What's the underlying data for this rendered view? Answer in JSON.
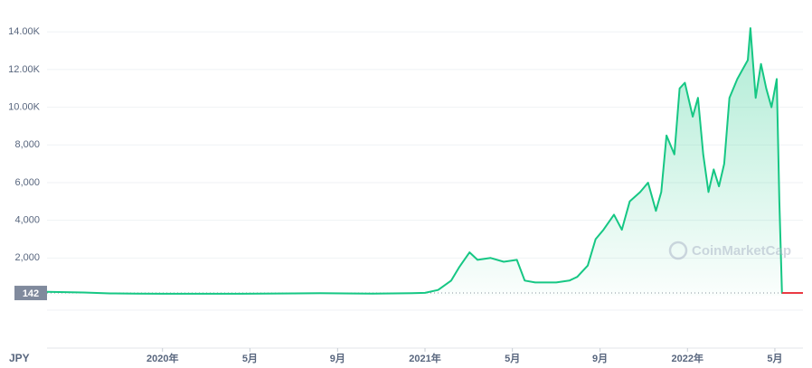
{
  "chart_data": {
    "type": "line",
    "currency": "JPY",
    "watermark": "CoinMarketCap",
    "current_price": 142,
    "x": [
      2019.56,
      2019.7,
      2019.8,
      2019.9,
      2020.0,
      2020.15,
      2020.3,
      2020.5,
      2020.6,
      2020.8,
      2020.95,
      2021.0,
      2021.05,
      2021.1,
      2021.13,
      2021.17,
      2021.2,
      2021.25,
      2021.3,
      2021.35,
      2021.38,
      2021.42,
      2021.5,
      2021.55,
      2021.58,
      2021.62,
      2021.65,
      2021.68,
      2021.72,
      2021.75,
      2021.78,
      2021.82,
      2021.85,
      2021.88,
      2021.9,
      2021.92,
      2021.95,
      2021.97,
      2021.99,
      2022.02,
      2022.04,
      2022.06,
      2022.08,
      2022.1,
      2022.12,
      2022.14,
      2022.16,
      2022.19,
      2022.21,
      2022.23,
      2022.24,
      2022.26,
      2022.28,
      2022.3,
      2022.32,
      2022.34,
      2022.35,
      2022.36,
      2022.44
    ],
    "values": [
      200,
      170,
      120,
      110,
      100,
      100,
      100,
      120,
      130,
      110,
      130,
      150,
      300,
      800,
      1500,
      2300,
      1900,
      2000,
      1800,
      1900,
      800,
      700,
      700,
      800,
      1000,
      1600,
      3000,
      3500,
      4300,
      3500,
      5000,
      5500,
      6000,
      4500,
      5500,
      8500,
      7500,
      11000,
      11300,
      9500,
      10500,
      7500,
      5500,
      6700,
      5800,
      7000,
      10500,
      11500,
      12000,
      12500,
      14200,
      10500,
      12300,
      11000,
      10000,
      11500,
      5000,
      142,
      142
    ],
    "color": "#16c784",
    "drop_color": "#ea3943",
    "xlim": [
      2019.56,
      2022.44
    ],
    "xticks": [
      {
        "value": 2020,
        "label": "2020年"
      },
      {
        "value": 2020.333,
        "label": "5月"
      },
      {
        "value": 2020.667,
        "label": "9月"
      },
      {
        "value": 2021,
        "label": "2021年"
      },
      {
        "value": 2021.333,
        "label": "5月"
      },
      {
        "value": 2021.667,
        "label": "9月"
      },
      {
        "value": 2022,
        "label": "2022年"
      },
      {
        "value": 2022.333,
        "label": "5月"
      }
    ],
    "ylim": [
      0,
      15500
    ],
    "yticks": [
      {
        "value": 2000,
        "label": "2,000"
      },
      {
        "value": 4000,
        "label": "4,000"
      },
      {
        "value": 6000,
        "label": "6,000"
      },
      {
        "value": 8000,
        "label": "8,000"
      },
      {
        "value": 10000,
        "label": "10.00K"
      },
      {
        "value": 12000,
        "label": "12.00K"
      },
      {
        "value": 14000,
        "label": "14.00K"
      }
    ],
    "grid": true
  }
}
